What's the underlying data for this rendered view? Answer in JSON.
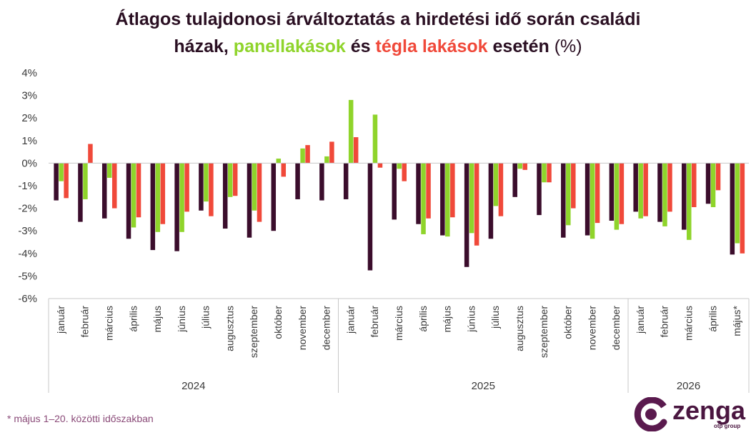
{
  "title": {
    "line1": "Átlagos tulajdonosi árváltoztatás a hirdetési idő során családi",
    "part_dark": "házak,",
    "part_green": "panellakások",
    "part_and": "és",
    "part_red": "tégla lakások",
    "part_end": "esetén",
    "unit": "(%)"
  },
  "footnote": "* május 1–20. közötti időszakban",
  "logo": {
    "name": "zenga",
    "sub": "otp group"
  },
  "colors": {
    "dark": "#3b0d2c",
    "green": "#8fd42b",
    "red": "#f0493a",
    "axis": "#c8c8c8",
    "text": "#3a3a3a"
  },
  "chart_data": {
    "type": "bar",
    "ylim": [
      -6,
      4
    ],
    "yticks": [
      "4%",
      "3%",
      "2%",
      "1%",
      "0%",
      "-1%",
      "-2%",
      "-3%",
      "-4%",
      "-5%",
      "-6%"
    ],
    "grid": false,
    "categories": [
      "január",
      "február",
      "március",
      "április",
      "május",
      "június",
      "július",
      "augusztus",
      "szeptember",
      "október",
      "november",
      "december",
      "január",
      "február",
      "március",
      "április",
      "május",
      "június",
      "július",
      "augusztus",
      "szeptember",
      "október",
      "november",
      "december",
      "január",
      "február",
      "március",
      "április",
      "május*"
    ],
    "groups": [
      {
        "label": "2024",
        "count": 12
      },
      {
        "label": "2025",
        "count": 12
      },
      {
        "label": "2026",
        "count": 5
      }
    ],
    "series": [
      {
        "name": "családi házak",
        "color": "#3b0d2c",
        "values": [
          -1.65,
          -2.6,
          -2.45,
          -3.35,
          -3.85,
          -3.9,
          -2.1,
          -2.9,
          -3.3,
          -3.0,
          -1.6,
          -1.65,
          -1.6,
          -4.75,
          -2.5,
          -2.7,
          -3.2,
          -4.6,
          -3.35,
          -1.5,
          -2.3,
          -3.3,
          -3.2,
          -2.55,
          -2.15,
          -2.6,
          -2.95,
          -1.8,
          -4.05
        ]
      },
      {
        "name": "panellakások",
        "color": "#8fd42b",
        "values": [
          -0.8,
          -1.6,
          -0.65,
          -2.85,
          -3.05,
          -3.05,
          -1.7,
          -1.5,
          -2.1,
          0.2,
          0.65,
          0.3,
          2.8,
          2.15,
          -0.25,
          -3.15,
          -3.25,
          -3.1,
          -1.9,
          -0.25,
          -0.85,
          -2.75,
          -3.35,
          -2.95,
          -2.45,
          -2.8,
          -3.4,
          -1.95,
          -3.55
        ]
      },
      {
        "name": "tégla lakások",
        "color": "#f0493a",
        "values": [
          -1.55,
          0.85,
          -2.0,
          -2.4,
          -2.7,
          -2.15,
          -2.35,
          -1.45,
          -2.6,
          -0.6,
          0.8,
          0.95,
          1.15,
          -0.2,
          -0.8,
          -2.45,
          -2.4,
          -3.65,
          -2.35,
          -0.3,
          -0.85,
          -2.0,
          -2.65,
          -2.7,
          -2.35,
          -2.15,
          -1.95,
          -1.2,
          -4.0
        ]
      }
    ]
  }
}
